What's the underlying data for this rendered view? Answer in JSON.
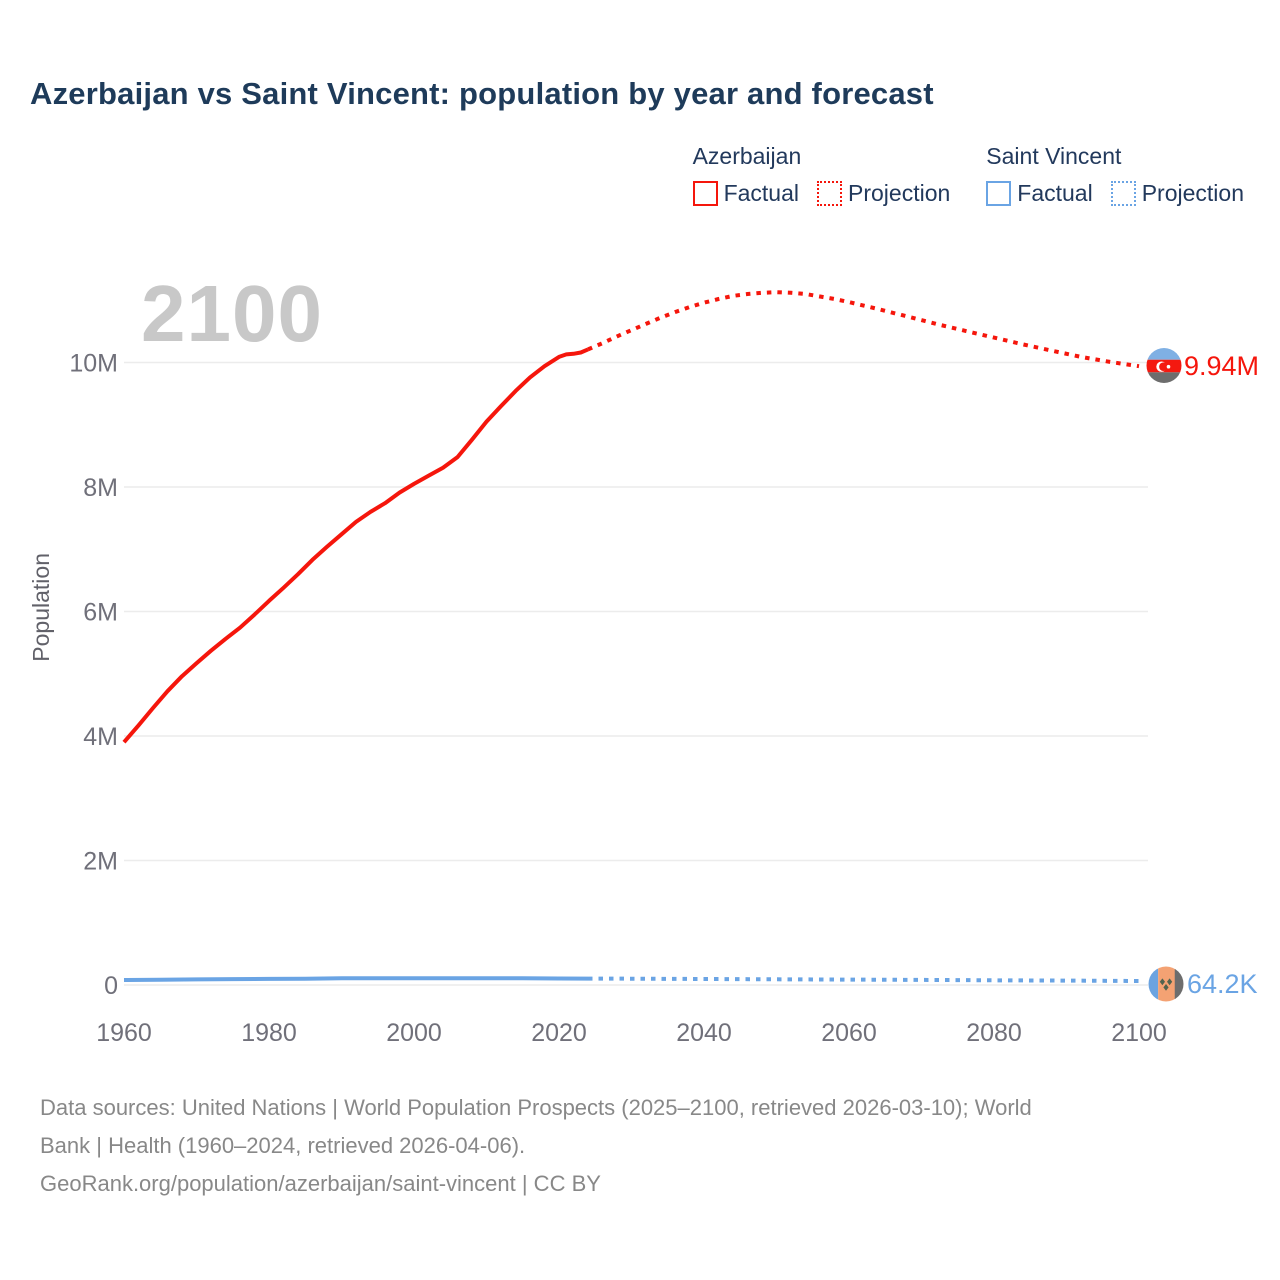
{
  "title": "Azerbaijan vs Saint Vincent: population by year and forecast",
  "watermark": "2100",
  "legend": {
    "groups": [
      {
        "name": "Azerbaijan",
        "color": "#f5160c",
        "items": [
          {
            "label": "Factual",
            "style": "solid"
          },
          {
            "label": "Projection",
            "style": "dotted"
          }
        ]
      },
      {
        "name": "Saint Vincent",
        "color": "#6aa4e4",
        "items": [
          {
            "label": "Factual",
            "style": "solid"
          },
          {
            "label": "Projection",
            "style": "dotted"
          }
        ]
      }
    ]
  },
  "axes": {
    "y_label": "Population",
    "y_ticks": [
      {
        "label": "10M",
        "value": 10
      },
      {
        "label": "8M",
        "value": 8
      },
      {
        "label": "6M",
        "value": 6
      },
      {
        "label": "4M",
        "value": 4
      },
      {
        "label": "2M",
        "value": 2
      },
      {
        "label": "0",
        "value": 0
      }
    ],
    "x_ticks": [
      {
        "label": "1960",
        "value": 1960
      },
      {
        "label": "1980",
        "value": 1980
      },
      {
        "label": "2000",
        "value": 2000
      },
      {
        "label": "2020",
        "value": 2020
      },
      {
        "label": "2040",
        "value": 2040
      },
      {
        "label": "2060",
        "value": 2060
      },
      {
        "label": "2080",
        "value": 2080
      },
      {
        "label": "2100",
        "value": 2100
      }
    ]
  },
  "chart_data": {
    "type": "line",
    "title": "Azerbaijan vs Saint Vincent: population by year and forecast",
    "xlabel": "",
    "ylabel": "Population",
    "xlim": [
      1960,
      2100
    ],
    "ylim": [
      0,
      11.6
    ],
    "y_unit": "millions",
    "grid": "horizontal",
    "legend_position": "top-right",
    "series": [
      {
        "name": "Azerbaijan Factual",
        "color": "#f5160c",
        "line": "solid",
        "points": [
          [
            1960,
            3.9
          ],
          [
            1962,
            4.17
          ],
          [
            1964,
            4.45
          ],
          [
            1966,
            4.72
          ],
          [
            1968,
            4.96
          ],
          [
            1970,
            5.17
          ],
          [
            1972,
            5.37
          ],
          [
            1974,
            5.56
          ],
          [
            1976,
            5.74
          ],
          [
            1978,
            5.95
          ],
          [
            1980,
            6.17
          ],
          [
            1982,
            6.38
          ],
          [
            1984,
            6.6
          ],
          [
            1986,
            6.83
          ],
          [
            1988,
            7.04
          ],
          [
            1990,
            7.24
          ],
          [
            1992,
            7.44
          ],
          [
            1994,
            7.6
          ],
          [
            1996,
            7.74
          ],
          [
            1998,
            7.91
          ],
          [
            2000,
            8.05
          ],
          [
            2002,
            8.18
          ],
          [
            2004,
            8.31
          ],
          [
            2006,
            8.48
          ],
          [
            2008,
            8.76
          ],
          [
            2010,
            9.05
          ],
          [
            2012,
            9.3
          ],
          [
            2014,
            9.54
          ],
          [
            2016,
            9.76
          ],
          [
            2018,
            9.94
          ],
          [
            2020,
            10.09
          ],
          [
            2021,
            10.13
          ],
          [
            2022,
            10.14
          ],
          [
            2023,
            10.16
          ],
          [
            2024,
            10.21
          ]
        ]
      },
      {
        "name": "Azerbaijan Projection",
        "color": "#f5160c",
        "line": "dotted",
        "points": [
          [
            2024,
            10.21
          ],
          [
            2026,
            10.31
          ],
          [
            2028,
            10.42
          ],
          [
            2030,
            10.52
          ],
          [
            2032,
            10.62
          ],
          [
            2034,
            10.72
          ],
          [
            2036,
            10.81
          ],
          [
            2038,
            10.89
          ],
          [
            2040,
            10.96
          ],
          [
            2042,
            11.02
          ],
          [
            2044,
            11.07
          ],
          [
            2046,
            11.1
          ],
          [
            2048,
            11.12
          ],
          [
            2050,
            11.13
          ],
          [
            2052,
            11.12
          ],
          [
            2054,
            11.1
          ],
          [
            2056,
            11.06
          ],
          [
            2058,
            11.02
          ],
          [
            2060,
            10.97
          ],
          [
            2064,
            10.86
          ],
          [
            2068,
            10.74
          ],
          [
            2072,
            10.62
          ],
          [
            2076,
            10.51
          ],
          [
            2080,
            10.4
          ],
          [
            2084,
            10.29
          ],
          [
            2088,
            10.19
          ],
          [
            2092,
            10.09
          ],
          [
            2096,
            10.01
          ],
          [
            2100,
            9.94
          ]
        ]
      },
      {
        "name": "Saint Vincent Factual",
        "color": "#6aa4e4",
        "line": "solid",
        "points": [
          [
            1960,
            0.081
          ],
          [
            1965,
            0.085
          ],
          [
            1970,
            0.09
          ],
          [
            1975,
            0.094
          ],
          [
            1980,
            0.098
          ],
          [
            1985,
            0.102
          ],
          [
            1990,
            0.107
          ],
          [
            1995,
            0.108
          ],
          [
            2000,
            0.108
          ],
          [
            2005,
            0.109
          ],
          [
            2010,
            0.109
          ],
          [
            2015,
            0.108
          ],
          [
            2020,
            0.105
          ],
          [
            2024,
            0.103
          ]
        ]
      },
      {
        "name": "Saint Vincent Projection",
        "color": "#6aa4e4",
        "line": "dotted",
        "points": [
          [
            2024,
            0.103
          ],
          [
            2030,
            0.101
          ],
          [
            2040,
            0.097
          ],
          [
            2050,
            0.092
          ],
          [
            2060,
            0.087
          ],
          [
            2070,
            0.082
          ],
          [
            2080,
            0.076
          ],
          [
            2090,
            0.07
          ],
          [
            2100,
            0.0642
          ]
        ]
      }
    ],
    "end_labels": [
      {
        "series": "Azerbaijan",
        "text": "9.94M",
        "color": "#f5160c",
        "marker": "azerbaijan-flag"
      },
      {
        "series": "Saint Vincent",
        "text": "64.2K",
        "color": "#6aa4e4",
        "marker": "saint-vincent-flag"
      }
    ]
  },
  "footer": {
    "line1": "Data sources: United Nations | World Population Prospects (2025–2100, retrieved 2026-03-10); World",
    "line2": "Bank | Health (1960–2024, retrieved 2026-04-06).",
    "line3": "GeoRank.org/population/azerbaijan/saint-vincent | CC BY"
  },
  "colors": {
    "title": "#1e3b5a",
    "legend_text": "#22395c",
    "tick_text": "#70707a",
    "grid": "#ececec",
    "watermark": "#c8c8c8",
    "footer_text": "#888888"
  }
}
